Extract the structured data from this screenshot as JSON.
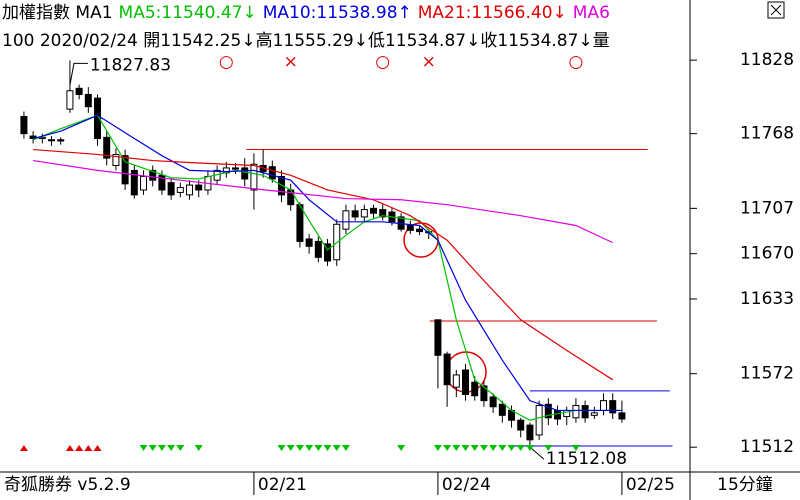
{
  "header": {
    "line1": [
      {
        "text": "加權指數 MA1",
        "color": "#000000"
      },
      {
        "text": "MA5:11540.47↓",
        "color": "#00c000"
      },
      {
        "text": "MA10:11538.98↑",
        "color": "#0000e0"
      },
      {
        "text": "MA21:11566.40↓",
        "color": "#e00000"
      },
      {
        "text": "MA6",
        "color": "#e000e0"
      }
    ],
    "line2": "100 2020/02/24 開11542.25↓高11555.29↓低11534.87↓收11534.87↓量"
  },
  "chart_data": {
    "type": "candlestick",
    "open": [
      11782,
      11766,
      11764,
      11763,
      11763,
      11788,
      11805,
      11800,
      11797,
      11765,
      11742,
      11750,
      11738,
      11722,
      11738,
      11734,
      11728,
      11720,
      11718,
      11726,
      11722,
      11730,
      11736,
      11740,
      11740,
      11722,
      11742,
      11741,
      11733,
      11722,
      11710,
      11682,
      11680,
      11678,
      11665,
      11690,
      11705,
      11700,
      11707,
      11706,
      11704,
      11700,
      11693,
      11690,
      11688,
      11616,
      11588,
      11561,
      11575,
      11565,
      11562,
      11553,
      11547,
      11542,
      11534,
      11530,
      11522,
      11547,
      11542,
      11537,
      11536,
      11546,
      11538,
      11542,
      11550,
      11540
    ],
    "high": [
      11786,
      11770,
      11768,
      11766,
      11765,
      11827.83,
      11808,
      11806,
      11800,
      11770,
      11756,
      11755,
      11742,
      11738,
      11742,
      11738,
      11732,
      11728,
      11730,
      11730,
      11738,
      11742,
      11745,
      11744,
      11748,
      11752,
      11755,
      11746,
      11738,
      11727,
      11712,
      11686,
      11684,
      11682,
      11698,
      11710,
      11710,
      11710,
      11710,
      11711,
      11708,
      11703,
      11697,
      11693,
      11690,
      11616,
      11590,
      11575,
      11580,
      11570,
      11566,
      11556,
      11550,
      11546,
      11536,
      11532,
      11550,
      11552,
      11546,
      11545,
      11552,
      11550,
      11545,
      11556,
      11556,
      11550
    ],
    "low": [
      11764,
      11760,
      11760,
      11758,
      11759,
      11785,
      11796,
      11785,
      11758,
      11742,
      11738,
      11722,
      11715,
      11718,
      11725,
      11718,
      11714,
      11716,
      11714,
      11716,
      11718,
      11726,
      11732,
      11735,
      11725,
      11706,
      11732,
      11728,
      11712,
      11705,
      11675,
      11670,
      11663,
      11660,
      11660,
      11686,
      11697,
      11696,
      11699,
      11697,
      11693,
      11688,
      11686,
      11685,
      11682,
      11560,
      11545,
      11553,
      11550,
      11550,
      11545,
      11540,
      11532,
      11528,
      11520,
      11512.08,
      11518,
      11530,
      11530,
      11530,
      11532,
      11532,
      11535,
      11538,
      11535,
      11532
    ],
    "close": [
      11768,
      11764,
      11765,
      11763,
      11762,
      11803,
      11800,
      11790,
      11764,
      11748,
      11751,
      11727,
      11718,
      11733,
      11730,
      11722,
      11718,
      11724,
      11726,
      11722,
      11733,
      11738,
      11740,
      11739,
      11731,
      11743,
      11737,
      11731,
      11718,
      11710,
      11680,
      11676,
      11667,
      11664,
      11694,
      11705,
      11700,
      11706,
      11703,
      11700,
      11696,
      11690,
      11689,
      11688,
      11687,
      11587,
      11563,
      11571,
      11555,
      11554,
      11550,
      11545,
      11538,
      11534,
      11526,
      11518,
      11546,
      11536,
      11535,
      11542,
      11546,
      11536,
      11540,
      11550,
      11540,
      11535
    ],
    "series": [
      {
        "color": "#00c000",
        "x": [
          1,
          4,
          8,
          11,
          16,
          19,
          23,
          26,
          29,
          31,
          33,
          35,
          37,
          39,
          43,
          45,
          47,
          49,
          51,
          53,
          55,
          57,
          60,
          65
        ],
        "values": [
          11763,
          11772,
          11783,
          11745,
          11732,
          11731,
          11738,
          11734,
          11722,
          11697,
          11673,
          11685,
          11696,
          11701,
          11697,
          11681,
          11616,
          11567,
          11555,
          11542,
          11534,
          11538,
          11542,
          11542
        ]
      },
      {
        "color": "#0000e0",
        "x": [
          1,
          4,
          8,
          12,
          15,
          18,
          22,
          25,
          29,
          31,
          34,
          39,
          43,
          45,
          48,
          52,
          55,
          58,
          65
        ],
        "values": [
          11764,
          11770,
          11783,
          11764,
          11750,
          11738,
          11737,
          11738,
          11730,
          11714,
          11696,
          11696,
          11693,
          11681,
          11632,
          11583,
          11550,
          11542,
          11542
        ]
      },
      {
        "color": "#e00000",
        "x": [
          1,
          8,
          14,
          19,
          25,
          29,
          33,
          38,
          42,
          46,
          50,
          54,
          59,
          64
        ],
        "values": [
          11755,
          11751,
          11746,
          11744,
          11742,
          11734,
          11722,
          11714,
          11701,
          11681,
          11648,
          11616,
          11591,
          11567
        ]
      },
      {
        "color": "#e000e0",
        "x": [
          1,
          8,
          17,
          25,
          30,
          35,
          41,
          46,
          54,
          60,
          64
        ],
        "values": [
          11746,
          11738,
          11730,
          11723,
          11719,
          11715,
          11714,
          11710,
          11701,
          11693,
          11679
        ]
      }
    ],
    "levels": [
      {
        "value": 11755,
        "color": "#e00000",
        "from": 24.2,
        "to": 67.8
      },
      {
        "value": 11615,
        "color": "#e00000",
        "from": 44.1,
        "to": 68.8
      },
      {
        "value": 11558,
        "color": "#0000e0",
        "from": 55,
        "to": 70.2
      },
      {
        "value": 11513,
        "color": "#0000e0",
        "from": 52.8,
        "to": 70.5
      }
    ],
    "top_markers": [
      {
        "index": 22,
        "symbol": "○"
      },
      {
        "index": 29,
        "symbol": "×"
      },
      {
        "index": 39,
        "symbol": "○"
      },
      {
        "index": 44,
        "symbol": "×"
      },
      {
        "index": 60,
        "symbol": "○"
      }
    ],
    "buy_signals": [
      0,
      5,
      6,
      7,
      8
    ],
    "sell_signals": [
      13,
      14,
      15,
      16,
      17,
      19,
      28,
      29,
      30,
      31,
      32,
      33,
      34,
      35,
      41,
      45,
      46,
      47,
      48,
      49,
      50,
      51,
      52,
      53,
      54,
      55,
      57,
      60
    ],
    "xlim": [
      -2.6,
      72.4
    ],
    "xticks": [
      {
        "value": 25,
        "label": "02/21"
      },
      {
        "value": 45,
        "label": "02/24"
      },
      {
        "value": 65,
        "label": "02/25"
      }
    ],
    "ylim": [
      11495,
      11834
    ],
    "yticks": [
      11512,
      11572,
      11633,
      11670,
      11707,
      11768,
      11828
    ]
  },
  "footer": {
    "app": "奇狐勝券 v5.2.9",
    "period": "15分鐘"
  }
}
